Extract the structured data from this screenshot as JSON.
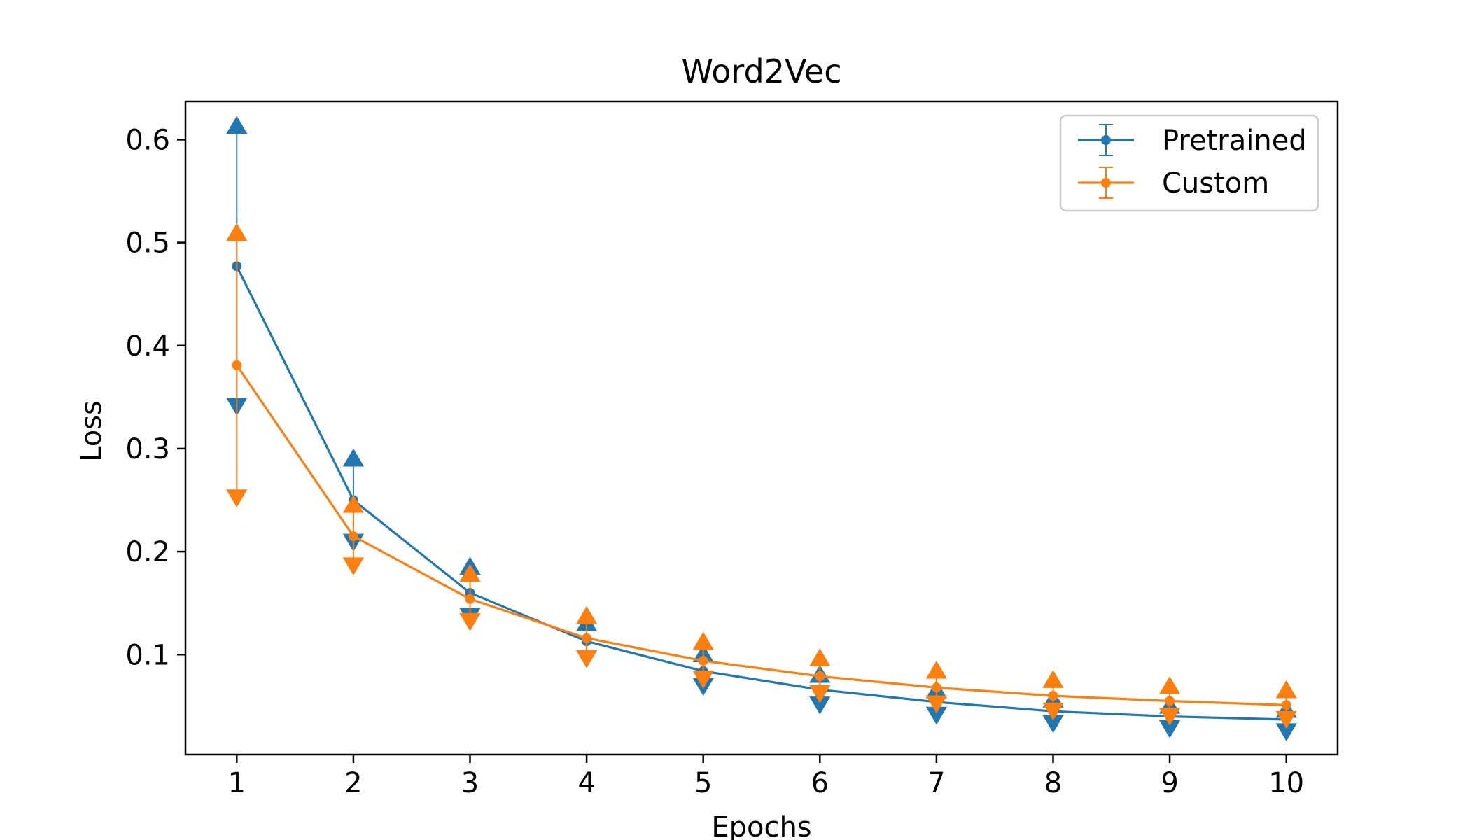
{
  "chart_data": {
    "type": "line",
    "title": "Word2Vec",
    "xlabel": "Epochs",
    "ylabel": "Loss",
    "xlim": [
      0.56,
      10.44
    ],
    "ylim": [
      0.003,
      0.637
    ],
    "x_ticks": [
      1,
      2,
      3,
      4,
      5,
      6,
      7,
      8,
      9,
      10
    ],
    "y_ticks": [
      0.1,
      0.2,
      0.3,
      0.4,
      0.5,
      0.6
    ],
    "y_tick_labels": [
      "0.1",
      "0.2",
      "0.3",
      "0.4",
      "0.5",
      "0.6"
    ],
    "grid": false,
    "legend_position": "top-right",
    "error_bar_style": "arrow-markers (upper: up-triangle, lower: down-triangle)",
    "x": [
      1,
      2,
      3,
      4,
      5,
      6,
      7,
      8,
      9,
      10
    ],
    "series": [
      {
        "name": "Pretrained",
        "color": "#1f77b4",
        "values": [
          0.477,
          0.25,
          0.16,
          0.113,
          0.084,
          0.066,
          0.054,
          0.045,
          0.04,
          0.037
        ],
        "upper": [
          0.613,
          0.29,
          0.185,
          0.13,
          0.1,
          0.08,
          0.065,
          0.056,
          0.05,
          0.046
        ],
        "lower": [
          0.342,
          0.21,
          0.138,
          0.097,
          0.07,
          0.052,
          0.042,
          0.034,
          0.029,
          0.026
        ]
      },
      {
        "name": "Custom",
        "color": "#ff7f0e",
        "values": [
          0.381,
          0.215,
          0.154,
          0.116,
          0.094,
          0.079,
          0.068,
          0.06,
          0.055,
          0.051
        ],
        "upper": [
          0.509,
          0.245,
          0.178,
          0.137,
          0.112,
          0.096,
          0.084,
          0.075,
          0.069,
          0.065
        ],
        "lower": [
          0.253,
          0.187,
          0.133,
          0.097,
          0.077,
          0.063,
          0.053,
          0.046,
          0.041,
          0.038
        ]
      }
    ]
  }
}
